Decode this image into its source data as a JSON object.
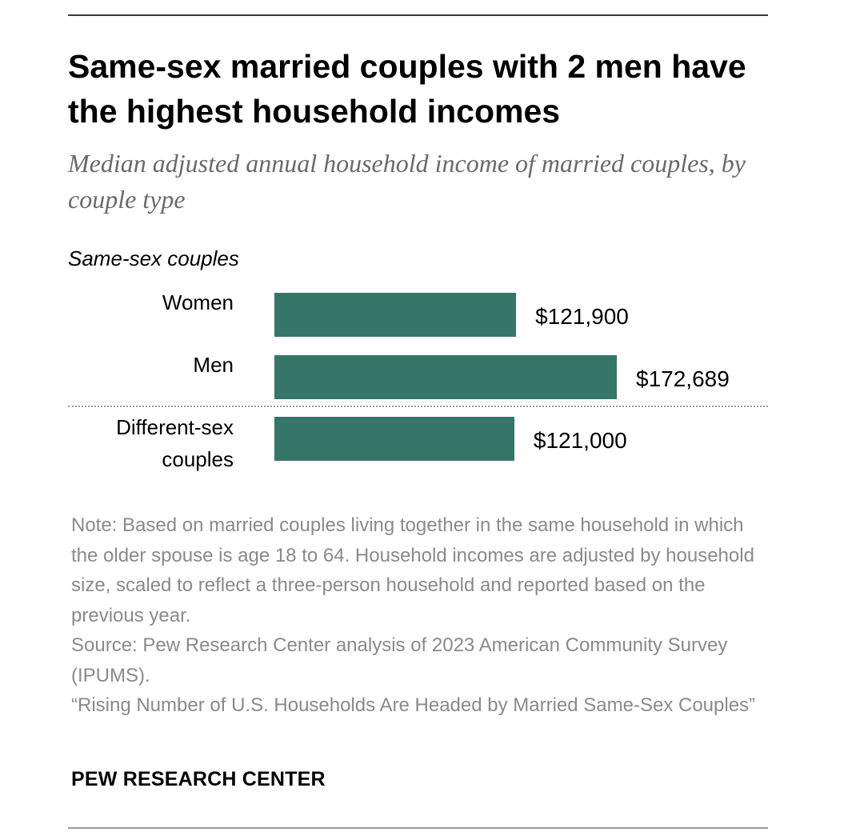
{
  "title": "Same-sex married couples with 2 men have the highest household incomes",
  "subtitle": "Median adjusted annual household income of married couples, by couple type",
  "chart_data": {
    "type": "bar",
    "orientation": "horizontal",
    "title": "Same-sex married couples with 2 men have the highest household incomes",
    "subtitle": "Median adjusted annual household income of married couples, by couple type",
    "xlabel": "",
    "ylabel": "",
    "groups": [
      {
        "label": "Same-sex couples",
        "categories": [
          "Women",
          "Men"
        ],
        "values": [
          121900,
          172689
        ],
        "value_labels": [
          "$121,900",
          "$172,689"
        ]
      },
      {
        "label": "",
        "categories": [
          "Different-sex couples"
        ],
        "values": [
          121000
        ],
        "value_labels": [
          "$121,000"
        ]
      }
    ],
    "categories": [
      "Women",
      "Men",
      "Different-sex couples"
    ],
    "values": [
      121900,
      172689,
      121000
    ],
    "category_labels": {
      "women": "Women",
      "men": "Men",
      "different_line1": "Different-sex",
      "different_line2": "couples"
    },
    "section_label": "Same-sex couples",
    "value_labels": [
      "$121,900",
      "$172,689",
      "$121,000"
    ],
    "xlim": [
      0,
      172689
    ],
    "bar_color": "#367669",
    "grid": false,
    "legend": "none"
  },
  "notes": {
    "note": "Note: Based on married couples living together in the same household in which the older spouse is age 18 to 64. Household incomes are adjusted by household size, scaled to reflect a three-person household and reported based on the previous year.",
    "source": "Source: Pew Research Center analysis of 2023 American Community Survey (IPUMS).",
    "report": "“Rising Number of U.S. Households Are Headed by Married Same-Sex Couples”"
  },
  "brand": "PEW RESEARCH CENTER"
}
